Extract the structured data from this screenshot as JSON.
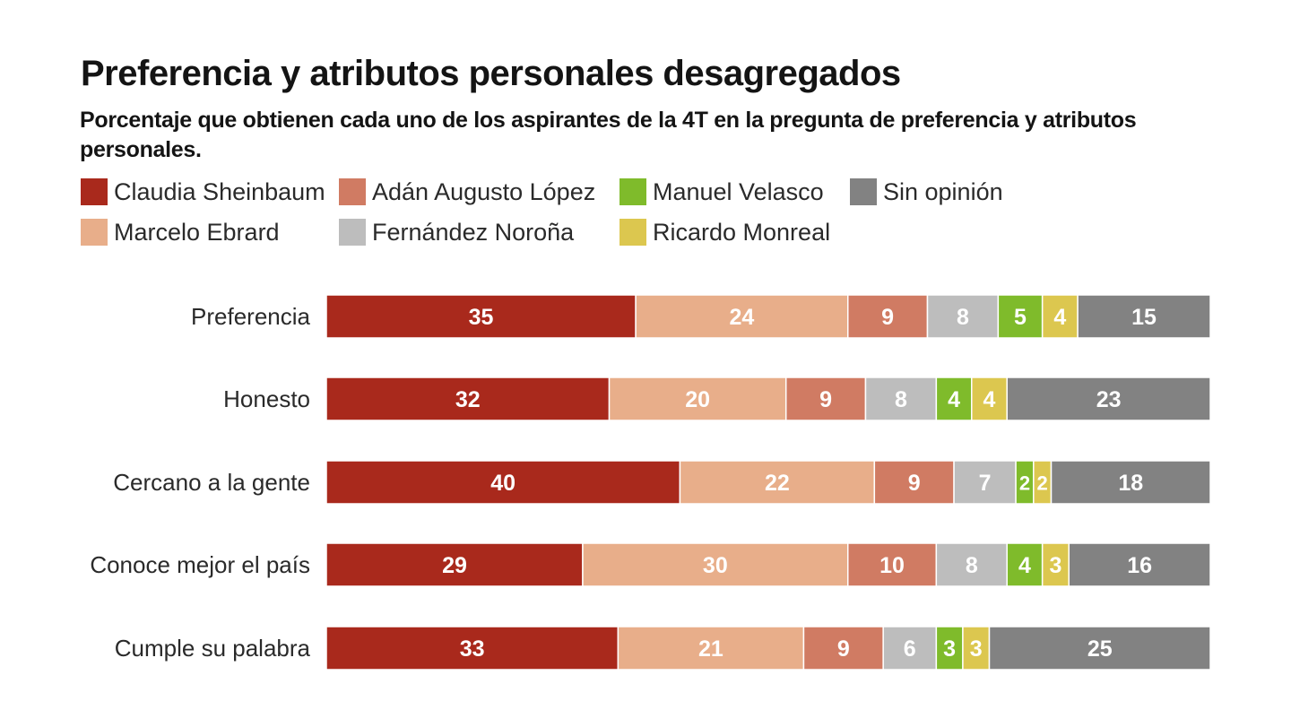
{
  "title": "Preferencia y atributos personales desagregados",
  "subtitle": "Porcentaje que obtienen cada uno de los aspirantes de la 4T en la pregunta de preferencia y atributos personales.",
  "chart_data": {
    "type": "bar",
    "orientation": "horizontal",
    "stacked": true,
    "categories": [
      "Preferencia",
      "Honesto",
      "Cercano a la gente",
      "Conoce mejor el país",
      "Cumple su palabra"
    ],
    "series": [
      {
        "name": "Claudia Sheinbaum",
        "color": "#a9291c",
        "values": [
          35,
          32,
          40,
          29,
          33
        ]
      },
      {
        "name": "Marcelo Ebrard",
        "color": "#e8ae8a",
        "values": [
          24,
          20,
          22,
          30,
          21
        ]
      },
      {
        "name": "Adán Augusto López",
        "color": "#d07b63",
        "values": [
          9,
          9,
          9,
          10,
          9
        ]
      },
      {
        "name": "Fernández Noroña",
        "color": "#bdbdbd",
        "values": [
          8,
          8,
          7,
          8,
          6
        ]
      },
      {
        "name": "Manuel Velasco",
        "color": "#7fbb2b",
        "values": [
          5,
          4,
          2,
          4,
          3
        ]
      },
      {
        "name": "Ricardo Monreal",
        "color": "#dcc74f",
        "values": [
          4,
          4,
          2,
          3,
          3
        ]
      },
      {
        "name": "Sin opinión",
        "color": "#828282",
        "values": [
          15,
          23,
          18,
          16,
          25
        ]
      }
    ],
    "legend_order": [
      "Claudia Sheinbaum",
      "Adán Augusto López",
      "Manuel Velasco",
      "Sin opinión",
      "Marcelo Ebrard",
      "Fernández Noroña",
      "Ricardo Monreal"
    ],
    "data_labels": true,
    "grid": false,
    "legend_position": "top-left"
  }
}
